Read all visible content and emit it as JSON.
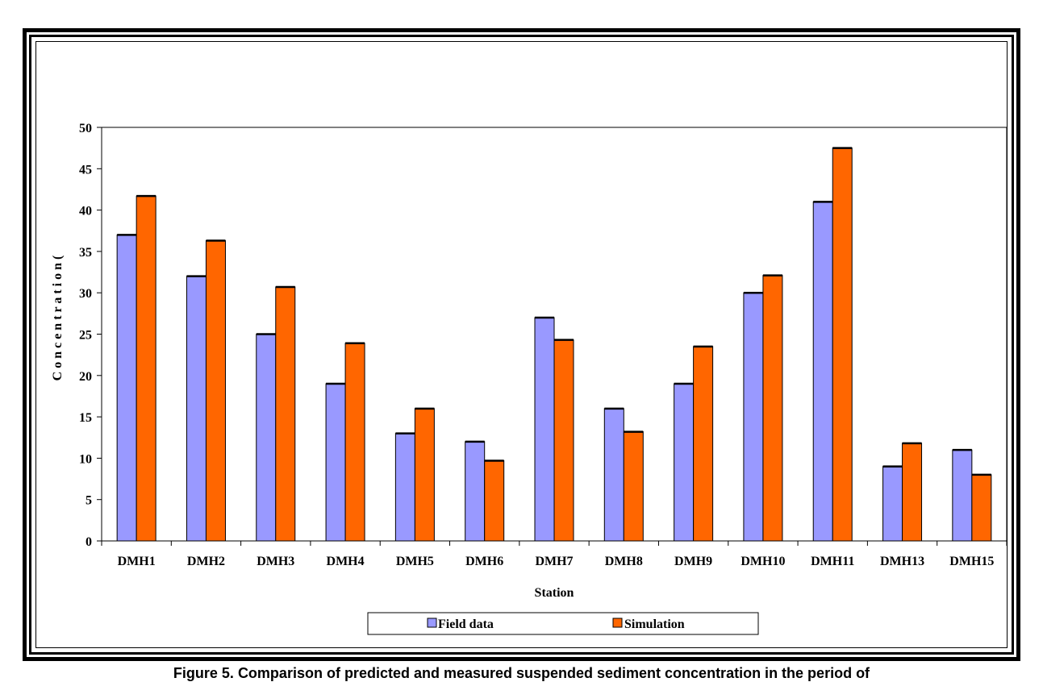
{
  "chart_data": {
    "type": "bar",
    "categories": [
      "DMH1",
      "DMH2",
      "DMH3",
      "DMH4",
      "DMH5",
      "DMH6",
      "DMH7",
      "DMH8",
      "DMH9",
      "DMH10",
      "DMH11",
      "DMH13",
      "DMH15"
    ],
    "series": [
      {
        "name": "Field data",
        "color": "#9999ff",
        "values": [
          37,
          32,
          25,
          19,
          13,
          12,
          27,
          16,
          19,
          30,
          41,
          9,
          11
        ]
      },
      {
        "name": "Simulation",
        "color": "#ff6600",
        "values": [
          41.7,
          36.3,
          30.7,
          23.9,
          16,
          9.7,
          24.3,
          13.2,
          23.5,
          32.1,
          47.5,
          11.8,
          8
        ]
      }
    ],
    "title": "",
    "xlabel": "Station",
    "ylabel": "C o n c e n t r a t i o n  (",
    "ylim": [
      0,
      50
    ],
    "yticks": [
      0,
      5,
      10,
      15,
      20,
      25,
      30,
      35,
      40,
      45,
      50
    ],
    "grid": false,
    "legend": "bottom-center"
  },
  "caption": "Figure 5. Comparison of predicted and measured suspended sediment concentration in the period of"
}
